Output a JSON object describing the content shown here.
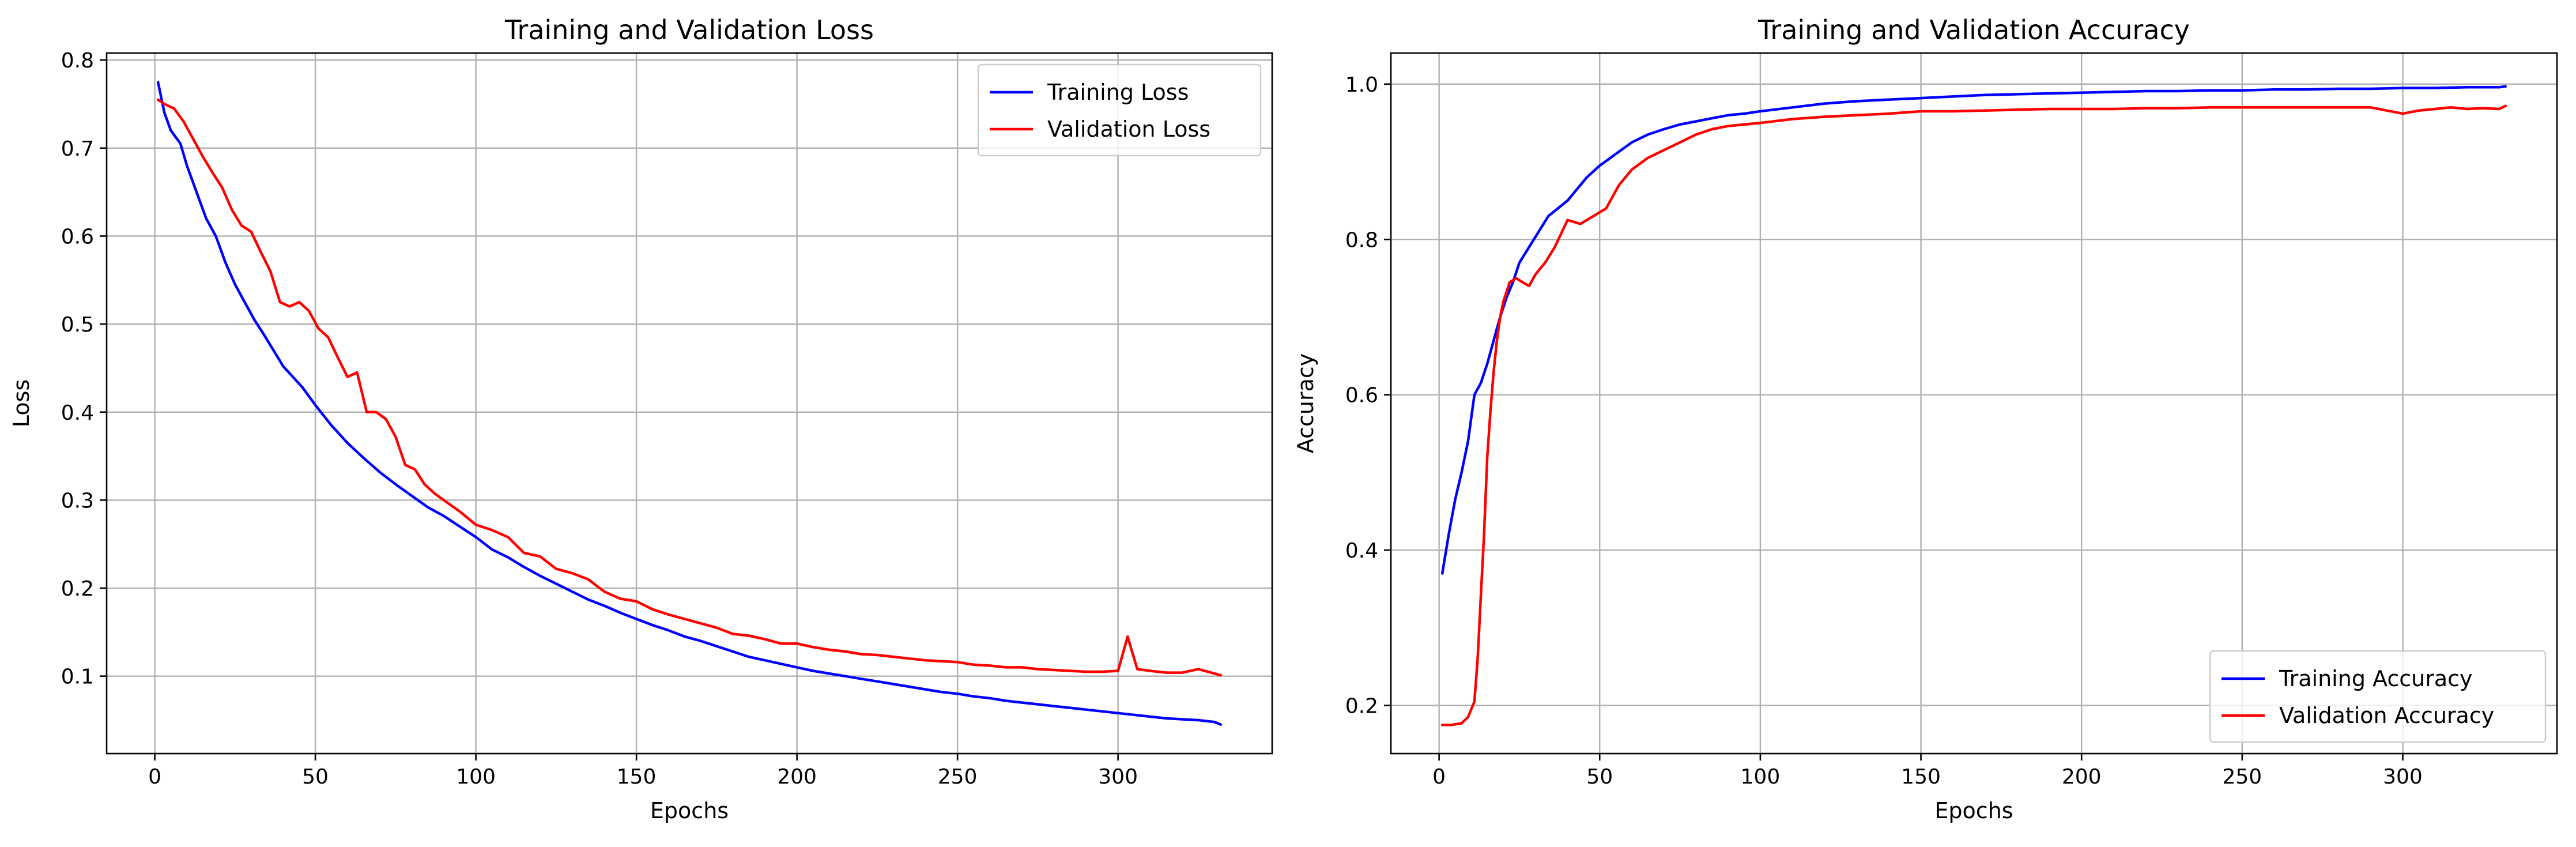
{
  "chart_data": [
    {
      "type": "line",
      "title": "Training and Validation Loss",
      "xlabel": "Epochs",
      "ylabel": "Loss",
      "xlim": [
        -15,
        348
      ],
      "ylim": [
        0.012,
        0.808
      ],
      "xticks": [
        0,
        50,
        100,
        150,
        200,
        250,
        300
      ],
      "yticks": [
        0.1,
        0.2,
        0.3,
        0.4,
        0.5,
        0.6,
        0.7,
        0.8
      ],
      "grid": true,
      "legend_position": "top-right",
      "series": [
        {
          "name": "Training Loss",
          "color": "#0000ff",
          "x": [
            1,
            3,
            5,
            8,
            10,
            13,
            16,
            19,
            22,
            25,
            28,
            31,
            34,
            37,
            40,
            43,
            46,
            50,
            55,
            60,
            65,
            70,
            75,
            80,
            85,
            90,
            95,
            100,
            105,
            110,
            115,
            120,
            125,
            130,
            135,
            140,
            145,
            150,
            155,
            160,
            165,
            170,
            175,
            180,
            185,
            190,
            195,
            200,
            205,
            210,
            215,
            220,
            225,
            230,
            235,
            240,
            245,
            250,
            255,
            260,
            265,
            270,
            275,
            280,
            285,
            290,
            295,
            300,
            305,
            310,
            315,
            320,
            325,
            330,
            332
          ],
          "values": [
            0.775,
            0.74,
            0.72,
            0.705,
            0.68,
            0.65,
            0.62,
            0.6,
            0.57,
            0.545,
            0.525,
            0.505,
            0.488,
            0.47,
            0.452,
            0.44,
            0.428,
            0.408,
            0.385,
            0.365,
            0.348,
            0.332,
            0.318,
            0.305,
            0.292,
            0.282,
            0.27,
            0.258,
            0.244,
            0.235,
            0.224,
            0.214,
            0.205,
            0.196,
            0.187,
            0.18,
            0.172,
            0.165,
            0.158,
            0.152,
            0.145,
            0.14,
            0.134,
            0.128,
            0.122,
            0.118,
            0.114,
            0.11,
            0.106,
            0.103,
            0.1,
            0.097,
            0.094,
            0.091,
            0.088,
            0.085,
            0.082,
            0.08,
            0.077,
            0.075,
            0.072,
            0.07,
            0.068,
            0.066,
            0.064,
            0.062,
            0.06,
            0.058,
            0.056,
            0.054,
            0.052,
            0.051,
            0.05,
            0.048,
            0.045
          ]
        },
        {
          "name": "Validation Loss",
          "color": "#ff0000",
          "x": [
            1,
            3,
            6,
            9,
            12,
            15,
            18,
            21,
            24,
            27,
            30,
            33,
            36,
            39,
            42,
            45,
            48,
            51,
            54,
            57,
            60,
            63,
            66,
            69,
            72,
            75,
            78,
            81,
            84,
            87,
            90,
            95,
            100,
            105,
            110,
            115,
            120,
            125,
            130,
            135,
            140,
            145,
            150,
            155,
            160,
            165,
            170,
            175,
            180,
            185,
            190,
            195,
            200,
            205,
            210,
            215,
            220,
            225,
            230,
            235,
            240,
            245,
            250,
            255,
            260,
            265,
            270,
            275,
            280,
            285,
            290,
            295,
            300,
            303,
            306,
            310,
            315,
            320,
            325,
            330,
            332
          ],
          "values": [
            0.755,
            0.75,
            0.745,
            0.73,
            0.71,
            0.69,
            0.672,
            0.655,
            0.63,
            0.612,
            0.605,
            0.582,
            0.56,
            0.525,
            0.52,
            0.525,
            0.515,
            0.495,
            0.485,
            0.462,
            0.44,
            0.445,
            0.4,
            0.4,
            0.392,
            0.372,
            0.34,
            0.335,
            0.318,
            0.308,
            0.3,
            0.287,
            0.272,
            0.266,
            0.258,
            0.24,
            0.236,
            0.222,
            0.217,
            0.21,
            0.196,
            0.188,
            0.185,
            0.176,
            0.17,
            0.165,
            0.16,
            0.155,
            0.148,
            0.146,
            0.142,
            0.137,
            0.137,
            0.133,
            0.13,
            0.128,
            0.125,
            0.124,
            0.122,
            0.12,
            0.118,
            0.117,
            0.116,
            0.113,
            0.112,
            0.11,
            0.11,
            0.108,
            0.107,
            0.106,
            0.105,
            0.105,
            0.106,
            0.145,
            0.108,
            0.106,
            0.104,
            0.104,
            0.108,
            0.103,
            0.101
          ]
        }
      ]
    },
    {
      "type": "line",
      "title": "Training and Validation Accuracy",
      "xlabel": "Epochs",
      "ylabel": "Accuracy",
      "xlim": [
        -15,
        348
      ],
      "ylim": [
        0.138,
        1.04
      ],
      "xticks": [
        0,
        50,
        100,
        150,
        200,
        250,
        300
      ],
      "yticks": [
        0.2,
        0.4,
        0.6,
        0.8,
        1.0
      ],
      "grid": true,
      "legend_position": "bottom-right",
      "series": [
        {
          "name": "Training Accuracy",
          "color": "#0000ff",
          "x": [
            1,
            3,
            5,
            7,
            9,
            11,
            13,
            15,
            17,
            19,
            21,
            23,
            25,
            28,
            31,
            34,
            37,
            40,
            43,
            46,
            50,
            55,
            60,
            65,
            70,
            75,
            80,
            85,
            90,
            95,
            100,
            110,
            120,
            130,
            140,
            150,
            160,
            170,
            180,
            190,
            200,
            210,
            220,
            230,
            240,
            250,
            260,
            270,
            280,
            290,
            300,
            310,
            320,
            330,
            332
          ],
          "values": [
            0.37,
            0.42,
            0.465,
            0.5,
            0.54,
            0.6,
            0.615,
            0.64,
            0.67,
            0.7,
            0.725,
            0.745,
            0.77,
            0.79,
            0.81,
            0.83,
            0.84,
            0.85,
            0.865,
            0.88,
            0.895,
            0.91,
            0.925,
            0.935,
            0.942,
            0.948,
            0.952,
            0.956,
            0.96,
            0.962,
            0.965,
            0.97,
            0.975,
            0.978,
            0.98,
            0.982,
            0.984,
            0.986,
            0.987,
            0.988,
            0.989,
            0.99,
            0.991,
            0.991,
            0.992,
            0.992,
            0.993,
            0.993,
            0.994,
            0.994,
            0.995,
            0.995,
            0.996,
            0.996,
            0.997
          ]
        },
        {
          "name": "Validation Accuracy",
          "color": "#ff0000",
          "x": [
            1,
            4,
            7,
            9,
            11,
            12,
            13,
            14,
            15,
            16,
            17,
            18,
            19,
            20,
            22,
            24,
            26,
            28,
            30,
            33,
            36,
            40,
            44,
            48,
            52,
            56,
            60,
            65,
            70,
            75,
            80,
            85,
            90,
            95,
            100,
            110,
            120,
            130,
            140,
            150,
            160,
            170,
            180,
            190,
            200,
            210,
            220,
            230,
            240,
            250,
            260,
            270,
            280,
            290,
            300,
            305,
            310,
            315,
            320,
            325,
            330,
            332
          ],
          "values": [
            0.175,
            0.175,
            0.177,
            0.185,
            0.205,
            0.26,
            0.34,
            0.42,
            0.52,
            0.58,
            0.63,
            0.67,
            0.7,
            0.72,
            0.745,
            0.75,
            0.745,
            0.74,
            0.755,
            0.77,
            0.79,
            0.825,
            0.82,
            0.83,
            0.84,
            0.87,
            0.89,
            0.905,
            0.915,
            0.925,
            0.935,
            0.942,
            0.946,
            0.948,
            0.95,
            0.955,
            0.958,
            0.96,
            0.962,
            0.965,
            0.965,
            0.966,
            0.967,
            0.968,
            0.968,
            0.968,
            0.969,
            0.969,
            0.97,
            0.97,
            0.97,
            0.97,
            0.97,
            0.97,
            0.962,
            0.966,
            0.968,
            0.97,
            0.968,
            0.969,
            0.968,
            0.972
          ]
        }
      ]
    }
  ]
}
